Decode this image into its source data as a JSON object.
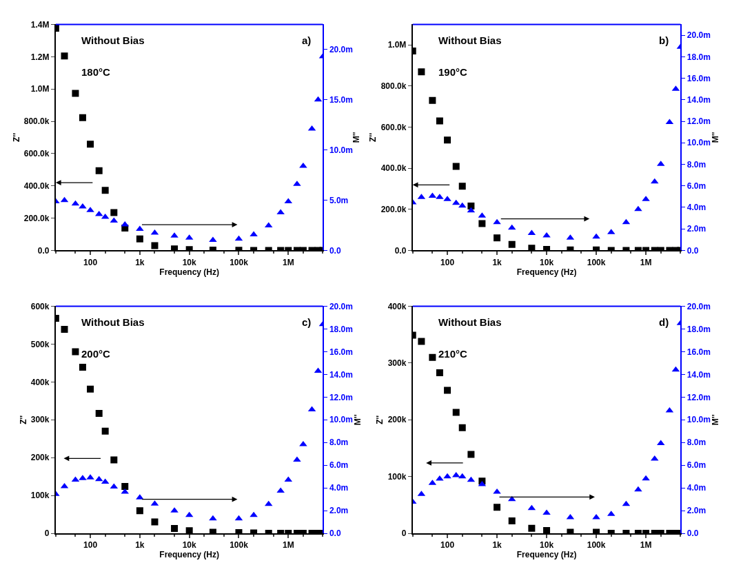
{
  "chart_data": [
    {
      "type": "scatter",
      "xlabel": "Frequency (Hz)",
      "ylabel": "Z''",
      "y2label": "M''",
      "annotations": [
        "Without Bias",
        "180°C",
        "a)"
      ],
      "log": "x",
      "x": [
        20,
        30,
        50,
        70,
        100,
        150,
        200,
        300,
        500,
        1000,
        2000,
        5000,
        10000,
        30000,
        100000,
        200000,
        400000,
        700000,
        1000000,
        1500000,
        2000000,
        3000000,
        4000000,
        5000000
      ],
      "xlim": [
        20,
        5000000
      ],
      "xticks": [
        100,
        {
          "value": 1000,
          "label": "1k"
        },
        {
          "value": 10000,
          "label": "10k"
        },
        {
          "value": 100000,
          "label": "100k"
        },
        {
          "value": 1000000,
          "label": "1M"
        }
      ],
      "ylim": [
        0,
        1400000
      ],
      "yticks": [
        {
          "value": 0,
          "label": "0.0"
        },
        {
          "value": 200000,
          "label": "200.0k"
        },
        {
          "value": 400000,
          "label": "400.0k"
        },
        {
          "value": 600000,
          "label": "600.0k"
        },
        {
          "value": 800000,
          "label": "800.0k"
        },
        {
          "value": 1000000,
          "label": "1.0M"
        },
        {
          "value": 1200000,
          "label": "1.2M"
        },
        {
          "value": 1400000,
          "label": "1.4M"
        }
      ],
      "y2lim": [
        0,
        22.5
      ],
      "y2ticks": [
        {
          "value": 0,
          "label": "0.0"
        },
        {
          "value": 5,
          "label": "5.0m"
        },
        {
          "value": 10,
          "label": "10.0m"
        },
        {
          "value": 15,
          "label": "15.0m"
        },
        {
          "value": 20,
          "label": "20.0m"
        }
      ],
      "series": [
        {
          "color": "#000000",
          "marker": "square",
          "values": [
            1376000,
            1205000,
            973000,
            822000,
            658000,
            494000,
            372000,
            235000,
            139000,
            71000,
            30000,
            10000,
            5000,
            2000,
            1000,
            0,
            0,
            0,
            0,
            0,
            0,
            0,
            0,
            0
          ]
        },
        {
          "color": "#0000ff",
          "marker": "triangle",
          "axis": "y2",
          "values": [
            4.87,
            4.98,
            4.65,
            4.35,
            4.0,
            3.6,
            3.33,
            2.95,
            2.57,
            2.13,
            1.75,
            1.45,
            1.25,
            1.03,
            1.14,
            1.58,
            2.46,
            3.77,
            4.87,
            6.6,
            8.4,
            12.1,
            15.0,
            19.3
          ]
        }
      ]
    },
    {
      "type": "scatter",
      "xlabel": "Frequency (Hz)",
      "ylabel": "Z''",
      "y2label": "M''",
      "annotations": [
        "Without Bias",
        "190°C",
        "b)"
      ],
      "log": "x",
      "x": [
        20,
        30,
        50,
        70,
        100,
        150,
        200,
        300,
        500,
        1000,
        2000,
        5000,
        10000,
        30000,
        100000,
        200000,
        400000,
        700000,
        1000000,
        1500000,
        2000000,
        3000000,
        4000000,
        5000000
      ],
      "xlim": [
        20,
        5000000
      ],
      "xticks": [
        100,
        {
          "value": 1000,
          "label": "1k"
        },
        {
          "value": 10000,
          "label": "10k"
        },
        {
          "value": 100000,
          "label": "100k"
        },
        {
          "value": 1000000,
          "label": "1M"
        }
      ],
      "ylim": [
        0,
        1100000
      ],
      "yticks": [
        {
          "value": 0,
          "label": "0.0"
        },
        {
          "value": 200000,
          "label": "200.0k"
        },
        {
          "value": 400000,
          "label": "400.0k"
        },
        {
          "value": 600000,
          "label": "600.0k"
        },
        {
          "value": 800000,
          "label": "800.0k"
        },
        {
          "value": 1000000,
          "label": "1.0M"
        }
      ],
      "y2lim": [
        0,
        21
      ],
      "y2ticks": [
        {
          "value": 0,
          "label": "0.0"
        },
        {
          "value": 2,
          "label": "2.0m"
        },
        {
          "value": 4,
          "label": "4.0m"
        },
        {
          "value": 6,
          "label": "6.0m"
        },
        {
          "value": 8,
          "label": "8.0m"
        },
        {
          "value": 10,
          "label": "10.0m"
        },
        {
          "value": 12,
          "label": "12.0m"
        },
        {
          "value": 14,
          "label": "14.0m"
        },
        {
          "value": 16,
          "label": "16.0m"
        },
        {
          "value": 18,
          "label": "18.0m"
        },
        {
          "value": 20,
          "label": "20.0m"
        }
      ],
      "series": [
        {
          "color": "#000000",
          "marker": "square",
          "values": [
            971000,
            869000,
            730000,
            630000,
            537000,
            409000,
            313000,
            216000,
            131000,
            61000,
            29000,
            11000,
            5000,
            2000,
            2000,
            0,
            0,
            0,
            0,
            0,
            0,
            0,
            0,
            0
          ]
        },
        {
          "color": "#0000ff",
          "marker": "triangle",
          "axis": "y2",
          "values": [
            4.44,
            4.95,
            5.06,
            4.95,
            4.75,
            4.4,
            4.14,
            3.7,
            3.21,
            2.6,
            2.1,
            1.6,
            1.37,
            1.17,
            1.27,
            1.68,
            2.6,
            3.83,
            4.75,
            6.39,
            8.02,
            11.9,
            15.0,
            18.9
          ]
        }
      ]
    },
    {
      "type": "scatter",
      "xlabel": "Frequency (Hz)",
      "ylabel": "Z''",
      "y2label": "M''",
      "annotations": [
        "Without Bias",
        "200°C",
        "c)"
      ],
      "log": "x",
      "x": [
        20,
        30,
        50,
        70,
        100,
        150,
        200,
        300,
        500,
        1000,
        2000,
        5000,
        10000,
        30000,
        100000,
        200000,
        400000,
        700000,
        1000000,
        1500000,
        2000000,
        3000000,
        4000000,
        5000000
      ],
      "xlim": [
        20,
        5000000
      ],
      "xticks": [
        100,
        {
          "value": 1000,
          "label": "1k"
        },
        {
          "value": 10000,
          "label": "10k"
        },
        {
          "value": 100000,
          "label": "100k"
        },
        {
          "value": 1000000,
          "label": "1M"
        }
      ],
      "ylim": [
        0,
        600000
      ],
      "yticks": [
        0,
        {
          "value": 100000,
          "label": "100k"
        },
        {
          "value": 200000,
          "label": "200k"
        },
        {
          "value": 300000,
          "label": "300k"
        },
        {
          "value": 400000,
          "label": "400k"
        },
        {
          "value": 500000,
          "label": "500k"
        },
        {
          "value": 600000,
          "label": "600k"
        }
      ],
      "y2lim": [
        0,
        20
      ],
      "y2ticks": [
        {
          "value": 0,
          "label": "0.0"
        },
        {
          "value": 2,
          "label": "2.0m"
        },
        {
          "value": 4,
          "label": "4.0m"
        },
        {
          "value": 6,
          "label": "6.0m"
        },
        {
          "value": 8,
          "label": "8.0m"
        },
        {
          "value": 10,
          "label": "10.0m"
        },
        {
          "value": 12,
          "label": "12.0m"
        },
        {
          "value": 14,
          "label": "14.0m"
        },
        {
          "value": 16,
          "label": "16.0m"
        },
        {
          "value": 18,
          "label": "18.0m"
        },
        {
          "value": 20,
          "label": "20.0m"
        }
      ],
      "series": [
        {
          "color": "#000000",
          "marker": "square",
          "values": [
            568000,
            539000,
            480000,
            439000,
            381000,
            317000,
            270000,
            194000,
            124000,
            60000,
            30000,
            13000,
            7000,
            3000,
            2000,
            1000,
            0,
            0,
            0,
            0,
            0,
            0,
            0,
            0
          ]
        },
        {
          "color": "#0000ff",
          "marker": "triangle",
          "axis": "y2",
          "values": [
            3.45,
            4.13,
            4.71,
            4.85,
            4.91,
            4.75,
            4.52,
            4.1,
            3.64,
            3.15,
            2.6,
            2.0,
            1.6,
            1.3,
            1.3,
            1.6,
            2.57,
            3.74,
            4.71,
            6.47,
            7.83,
            10.9,
            14.3,
            18.4
          ]
        }
      ]
    },
    {
      "type": "scatter",
      "xlabel": "Frequency (Hz)",
      "ylabel": "Z''",
      "y2label": "M''",
      "annotations": [
        "Without Bias",
        "210°C",
        "d)"
      ],
      "log": "x",
      "x": [
        20,
        30,
        50,
        70,
        100,
        150,
        200,
        300,
        500,
        1000,
        2000,
        5000,
        10000,
        30000,
        100000,
        200000,
        400000,
        700000,
        1000000,
        1500000,
        2000000,
        3000000,
        4000000,
        5000000
      ],
      "xlim": [
        20,
        5000000
      ],
      "xticks": [
        100,
        {
          "value": 1000,
          "label": "1k"
        },
        {
          "value": 10000,
          "label": "10k"
        },
        {
          "value": 100000,
          "label": "100k"
        },
        {
          "value": 1000000,
          "label": "1M"
        }
      ],
      "ylim": [
        0,
        400000
      ],
      "yticks": [
        0,
        {
          "value": 100000,
          "label": "100k"
        },
        {
          "value": 200000,
          "label": "200k"
        },
        {
          "value": 300000,
          "label": "300k"
        },
        {
          "value": 400000,
          "label": "400k"
        }
      ],
      "y2lim": [
        0,
        20
      ],
      "y2ticks": [
        {
          "value": 0,
          "label": "0.0"
        },
        {
          "value": 2,
          "label": "2.0m"
        },
        {
          "value": 4,
          "label": "4.0m"
        },
        {
          "value": 6,
          "label": "6.0m"
        },
        {
          "value": 8,
          "label": "8.0m"
        },
        {
          "value": 10,
          "label": "10.0m"
        },
        {
          "value": 12,
          "label": "12.0m"
        },
        {
          "value": 14,
          "label": "14.0m"
        },
        {
          "value": 16,
          "label": "16.0m"
        },
        {
          "value": 18,
          "label": "18.0m"
        },
        {
          "value": 20,
          "label": "20.0m"
        }
      ],
      "series": [
        {
          "color": "#000000",
          "marker": "square",
          "values": [
            349000,
            338000,
            310000,
            283000,
            252000,
            213000,
            186000,
            139000,
            92000,
            46000,
            22000,
            9000,
            5000,
            2000,
            2000,
            0,
            0,
            0,
            0,
            0,
            0,
            0,
            0,
            0
          ]
        },
        {
          "color": "#0000ff",
          "marker": "triangle",
          "axis": "y2",
          "values": [
            2.77,
            3.45,
            4.42,
            4.8,
            5.0,
            5.1,
            5.0,
            4.7,
            4.32,
            3.64,
            3.0,
            2.2,
            1.79,
            1.4,
            1.4,
            1.69,
            2.57,
            3.84,
            4.81,
            6.56,
            7.93,
            10.8,
            14.4,
            18.5
          ]
        }
      ]
    }
  ]
}
